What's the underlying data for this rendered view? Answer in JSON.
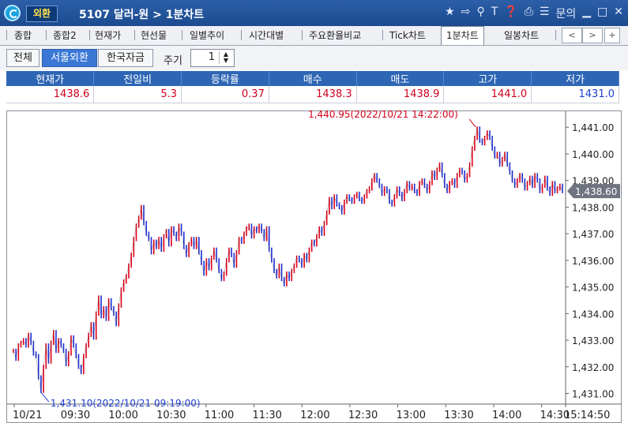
{
  "window": {
    "badge": "외환",
    "title": "5107 달러-원 > 1분차트",
    "tool_icons": [
      "star-icon",
      "export-icon",
      "link-icon",
      "text-icon",
      "help-icon",
      "print-icon",
      "list-icon"
    ],
    "inquiry": "문의"
  },
  "tabs": [
    "종합",
    "종합2",
    "현재가",
    "현선물",
    "일별추이",
    "시간대별",
    "주요환율비교",
    "Tick차트",
    "1분차트",
    "일봉차트"
  ],
  "active_tab": "1분차트",
  "controls": {
    "filters": [
      "전체",
      "서울외환",
      "한국자금"
    ],
    "selected_filter": "서울외환",
    "period_label": "주기",
    "period_value": "1"
  },
  "quote": {
    "headers": [
      "현재가",
      "전일비",
      "등락률",
      "매수",
      "매도",
      "고가",
      "저가"
    ],
    "values": [
      "1438.6",
      "5.3",
      "0.37",
      "1438.3",
      "1438.9",
      "1441.0",
      "1431.0"
    ],
    "value_colors": [
      "red",
      "red",
      "red",
      "red",
      "red",
      "red",
      "blue"
    ]
  },
  "chart_data": {
    "type": "line",
    "xlabel": "",
    "ylabel": "",
    "x_ticks": [
      "10/21",
      "09:30",
      "10:00",
      "10:30",
      "11:00",
      "11:30",
      "12:00",
      "12:30",
      "13:00",
      "13:30",
      "14:00",
      "14:30",
      "15:14:50"
    ],
    "y_ticks": [
      "1,441.00",
      "1,440.00",
      "1,439.00",
      "1,438.00",
      "1,437.00",
      "1,436.00",
      "1,435.00",
      "1,434.00",
      "1,433.00",
      "1,432.00",
      "1,431.00"
    ],
    "ylim": [
      1430.6,
      1441.6
    ],
    "current_price_label": "1,438.60",
    "high_annotation": "1,440.95(2022/10/21 14:22:00)",
    "low_annotation": "1,431.10(2022/10/21 09:19:00)",
    "series": [
      {
        "values": [
          1432.6,
          1432.3,
          1432.8,
          1432.9,
          1433.0,
          1432.8,
          1433.2,
          1432.9,
          1432.5,
          1432.4,
          1431.6,
          1431.1,
          1432.0,
          1432.8,
          1432.2,
          1432.9,
          1433.3,
          1432.6,
          1433.0,
          1432.8,
          1432.6,
          1432.1,
          1432.5,
          1433.1,
          1432.8,
          1432.4,
          1432.0,
          1431.8,
          1432.4,
          1432.8,
          1433.2,
          1433.6,
          1433.1,
          1434.0,
          1434.6,
          1433.9,
          1434.2,
          1433.8,
          1434.5,
          1434.2,
          1434.0,
          1433.6,
          1434.3,
          1434.9,
          1435.2,
          1435.4,
          1435.8,
          1436.2,
          1436.8,
          1437.3,
          1437.6,
          1438.0,
          1437.4,
          1437.0,
          1436.8,
          1436.3,
          1436.7,
          1436.5,
          1436.8,
          1436.4,
          1436.9,
          1437.1,
          1436.6,
          1437.2,
          1437.0,
          1436.8,
          1437.3,
          1437.0,
          1436.5,
          1436.2,
          1436.6,
          1436.8,
          1436.5,
          1436.8,
          1436.3,
          1435.9,
          1435.5,
          1436.0,
          1435.7,
          1436.1,
          1436.4,
          1436.0,
          1435.6,
          1435.3,
          1435.5,
          1436.0,
          1436.4,
          1436.2,
          1435.8,
          1436.3,
          1436.8,
          1436.7,
          1437.0,
          1437.2,
          1437.3,
          1436.9,
          1437.2,
          1437.1,
          1437.3,
          1437.1,
          1436.8,
          1437.2,
          1436.4,
          1436.0,
          1435.6,
          1435.4,
          1435.8,
          1435.3,
          1435.1,
          1435.5,
          1435.3,
          1435.6,
          1435.8,
          1436.1,
          1436.0,
          1435.8,
          1436.2,
          1436.0,
          1436.4,
          1436.7,
          1436.6,
          1436.9,
          1437.2,
          1437.0,
          1437.4,
          1437.8,
          1438.3,
          1438.0,
          1438.4,
          1438.1,
          1438.0,
          1437.8,
          1438.2,
          1438.4,
          1438.3,
          1438.2,
          1438.4,
          1438.5,
          1438.3,
          1438.2,
          1438.4,
          1438.6,
          1438.7,
          1439.0,
          1439.2,
          1439.0,
          1438.8,
          1438.5,
          1438.7,
          1438.6,
          1438.2,
          1438.1,
          1438.4,
          1438.7,
          1438.5,
          1438.3,
          1438.6,
          1438.9,
          1438.7,
          1438.8,
          1438.6,
          1438.5,
          1438.9,
          1439.0,
          1438.8,
          1438.6,
          1438.9,
          1439.3,
          1439.1,
          1439.4,
          1439.6,
          1439.2,
          1438.8,
          1438.6,
          1438.9,
          1439.0,
          1438.8,
          1439.2,
          1439.4,
          1439.3,
          1439.0,
          1439.2,
          1439.6,
          1440.2,
          1440.6,
          1440.95,
          1440.5,
          1440.4,
          1440.6,
          1440.8,
          1440.6,
          1440.2,
          1439.9,
          1440.0,
          1439.6,
          1439.8,
          1440.0,
          1439.6,
          1439.3,
          1439.0,
          1438.8,
          1439.0,
          1439.2,
          1439.0,
          1438.7,
          1438.9,
          1439.1,
          1438.8,
          1439.2,
          1439.0,
          1438.6,
          1438.8,
          1439.1,
          1438.7,
          1438.5,
          1438.9,
          1438.6,
          1438.7,
          1438.8,
          1438.6
        ]
      }
    ]
  }
}
